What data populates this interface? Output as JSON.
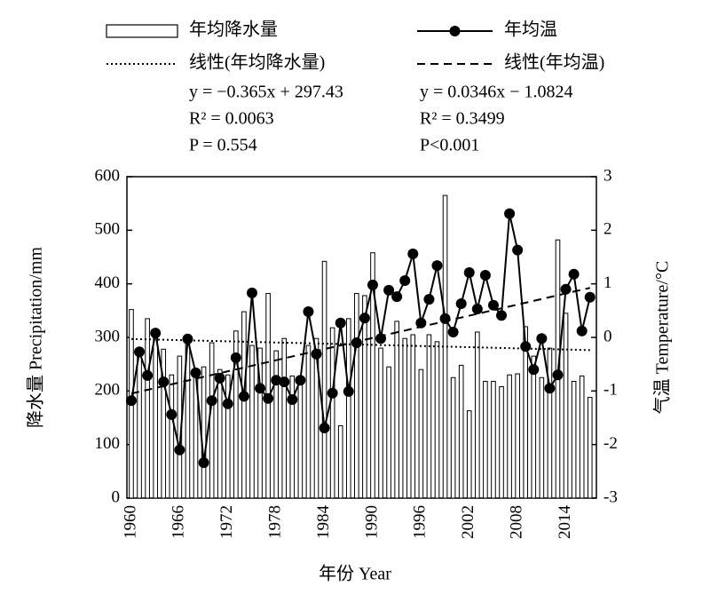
{
  "chart_data": {
    "type": "bar",
    "x": [
      1960,
      1961,
      1962,
      1963,
      1964,
      1965,
      1966,
      1967,
      1968,
      1969,
      1970,
      1971,
      1972,
      1973,
      1974,
      1975,
      1976,
      1977,
      1978,
      1979,
      1980,
      1981,
      1982,
      1983,
      1984,
      1985,
      1986,
      1987,
      1988,
      1989,
      1990,
      1991,
      1992,
      1993,
      1994,
      1995,
      1996,
      1997,
      1998,
      1999,
      2000,
      2001,
      2002,
      2003,
      2004,
      2005,
      2006,
      2007,
      2008,
      2009,
      2010,
      2011,
      2012,
      2013,
      2014,
      2015,
      2016,
      2017
    ],
    "series": [
      {
        "name": "年均降水量",
        "type": "bar",
        "color": "#ffffff",
        "values": [
          352,
          280,
          335,
          300,
          278,
          230,
          265,
          290,
          240,
          245,
          290,
          240,
          230,
          312,
          348,
          285,
          280,
          382,
          275,
          298,
          228,
          222,
          285,
          298,
          442,
          318,
          135,
          335,
          382,
          378,
          458,
          280,
          245,
          330,
          298,
          305,
          240,
          305,
          292,
          565,
          225,
          248,
          163,
          310,
          218,
          218,
          208,
          230,
          232,
          320,
          265,
          225,
          280,
          482,
          345,
          218,
          228,
          188
        ]
      },
      {
        "name": "年均温",
        "type": "line",
        "axis": "y2",
        "color": "#000000",
        "values": [
          -1.18,
          -0.27,
          -0.71,
          0.08,
          -0.83,
          -1.44,
          -2.1,
          -0.03,
          -0.66,
          -2.34,
          -1.18,
          -0.76,
          -1.24,
          -0.38,
          -1.1,
          0.83,
          -0.95,
          -1.14,
          -0.8,
          -0.83,
          -1.16,
          -0.8,
          0.48,
          -0.31,
          -1.69,
          -1.04,
          0.27,
          -1.01,
          -0.1,
          0.36,
          0.98,
          -0.02,
          0.88,
          0.76,
          1.06,
          1.56,
          0.27,
          0.71,
          1.34,
          0.35,
          0.1,
          0.63,
          1.21,
          0.53,
          1.16,
          0.6,
          0.41,
          2.31,
          1.63,
          -0.17,
          -0.6,
          -0.02,
          -0.95,
          -0.7,
          0.9,
          1.18,
          0.12,
          0.75
        ]
      },
      {
        "name": "线性(年均降水量)",
        "type": "trend",
        "dash": "dotted",
        "color": "#000000",
        "x": [
          1960,
          2017
        ],
        "values": [
          297.07,
          276.26
        ]
      },
      {
        "name": "线性(年均温)",
        "type": "trend",
        "dash": "dashed",
        "axis": "y2",
        "color": "#000000",
        "x": [
          1960,
          2017
        ],
        "values": [
          -1.048,
          0.9244
        ]
      }
    ],
    "annotations": [
      [
        "y = −0.365x + 297.43",
        "R² = 0.0063",
        "P = 0.554"
      ],
      [
        "y = 0.0346x −  1.0824",
        "R² = 0.3499",
        "P<0.001"
      ]
    ],
    "xlabel": "年份 Year",
    "ylabel": "降水量 Precipitation/mm",
    "y2label": "气温 Temperature/°C",
    "xlim": [
      1959.45,
      2017.8
    ],
    "xticks": [
      1960,
      1966,
      1972,
      1978,
      1984,
      1990,
      1996,
      2002,
      2008,
      2014
    ],
    "ylim": [
      0,
      600
    ],
    "yticks": [
      0,
      100,
      200,
      300,
      400,
      500,
      600
    ],
    "y2lim": [
      -3,
      3
    ],
    "y2ticks": [
      -3,
      -2,
      -1,
      0,
      1,
      2,
      3
    ]
  }
}
